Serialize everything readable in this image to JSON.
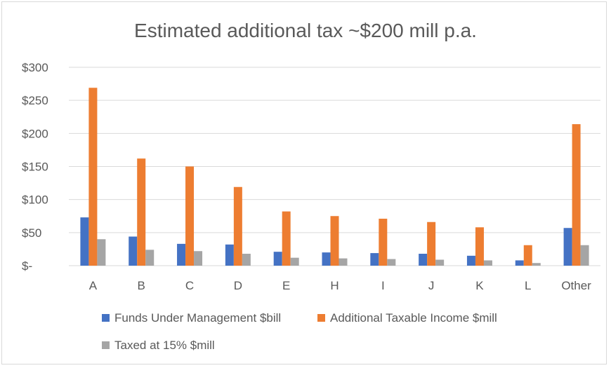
{
  "chart_data": {
    "type": "bar",
    "title": "Estimated additional tax ~$200 mill p.a.",
    "xlabel": "",
    "ylabel": "",
    "categories": [
      "A",
      "B",
      "C",
      "D",
      "E",
      "H",
      "I",
      "J",
      "K",
      "L",
      "Other"
    ],
    "ylim": [
      0,
      300
    ],
    "yticks": [
      0,
      50,
      100,
      150,
      200,
      250,
      300
    ],
    "ytick_labels": [
      "$-",
      "$50",
      "$100",
      "$150",
      "$200",
      "$250",
      "$300"
    ],
    "grid": true,
    "legend_position": "bottom",
    "series": [
      {
        "name": "Funds Under Management $bill",
        "color": "#4472c4",
        "values": [
          73,
          44,
          33,
          32,
          21,
          20,
          19,
          18,
          15,
          8,
          57
        ]
      },
      {
        "name": "Additional Taxable Income $mill",
        "color": "#ed7d31",
        "values": [
          269,
          162,
          150,
          119,
          82,
          75,
          71,
          66,
          58,
          31,
          214
        ]
      },
      {
        "name": "Taxed at 15% $mill",
        "color": "#a5a5a5",
        "values": [
          40,
          24,
          22,
          18,
          12,
          11,
          10,
          9,
          8,
          4,
          31
        ]
      }
    ]
  }
}
